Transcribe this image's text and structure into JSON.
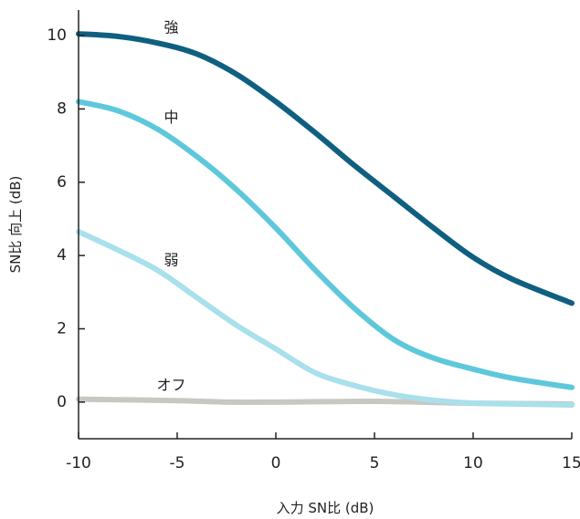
{
  "chart_data": {
    "type": "line",
    "title": "",
    "xlabel": "入力 SN比 (dB)",
    "ylabel": "SN比 向上 (dB)",
    "xlim": [
      -10,
      15
    ],
    "ylim": [
      -1,
      10.7
    ],
    "xticks": [
      -10,
      -5,
      0,
      5,
      10,
      15
    ],
    "yticks": [
      0,
      2,
      4,
      6,
      8,
      10
    ],
    "grid": false,
    "legend": "inline labels",
    "series": [
      {
        "name": "強",
        "color": "#0f5f80",
        "x": [
          -10,
          -8,
          -6,
          -4,
          -2,
          0,
          2,
          4,
          6,
          8,
          10,
          12,
          15
        ],
        "y": [
          10.05,
          9.98,
          9.8,
          9.5,
          8.95,
          8.2,
          7.35,
          6.45,
          5.6,
          4.75,
          3.95,
          3.35,
          2.7
        ],
        "label_at": [
          -5.3,
          10.2
        ]
      },
      {
        "name": "中",
        "color": "#5ec8db",
        "x": [
          -10,
          -8,
          -6,
          -4,
          -2,
          0,
          2,
          4,
          6,
          8,
          10,
          12,
          15
        ],
        "y": [
          8.2,
          7.95,
          7.45,
          6.7,
          5.8,
          4.75,
          3.6,
          2.55,
          1.7,
          1.2,
          0.9,
          0.65,
          0.4
        ],
        "label_at": [
          -5.3,
          7.75
        ]
      },
      {
        "name": "弱",
        "color": "#a8e0ec",
        "x": [
          -10,
          -8,
          -6,
          -4,
          -2,
          0,
          2,
          4,
          6,
          8,
          10,
          12,
          15
        ],
        "y": [
          4.65,
          4.15,
          3.6,
          2.85,
          2.1,
          1.45,
          0.8,
          0.45,
          0.2,
          0.05,
          -0.03,
          -0.05,
          -0.08
        ],
        "label_at": [
          -5.3,
          3.85
        ]
      },
      {
        "name": "オフ",
        "color": "#c8c8c2",
        "x": [
          -10,
          -5,
          -2.5,
          0,
          5,
          10,
          15
        ],
        "y": [
          0.08,
          0.04,
          0.0,
          0.0,
          0.02,
          -0.03,
          -0.05
        ],
        "label_at": [
          -5.3,
          0.45
        ]
      }
    ]
  }
}
